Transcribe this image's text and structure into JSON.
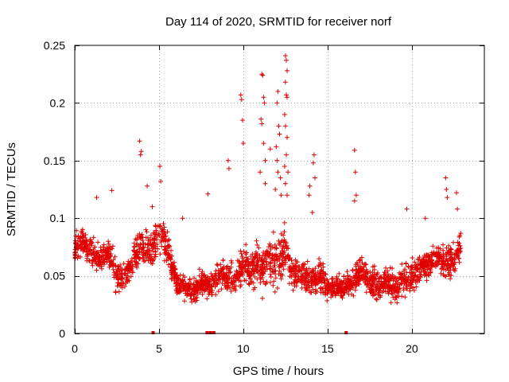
{
  "chart_data": {
    "type": "scatter",
    "title": "Day 114 of 2020, SRMTID for receiver norf",
    "xlabel": "GPS time / hours",
    "ylabel": "SRMTID / TECUs",
    "xlim": [
      0,
      24.3
    ],
    "ylim": [
      0,
      0.25
    ],
    "xticks": [
      0,
      5,
      10,
      15,
      20
    ],
    "xtick_labels": [
      "0",
      "5",
      "10",
      "15",
      "20"
    ],
    "yticks": [
      0,
      0.05,
      0.1,
      0.15,
      0.2,
      0.25
    ],
    "ytick_labels": [
      "0",
      "0.05",
      "0.1",
      "0.15",
      "0.2",
      "0.25"
    ],
    "grid": true,
    "marker": "+",
    "color": "#e00000",
    "series": [
      {
        "name": "SRMTID",
        "envelope": {
          "x": [
            0,
            0.5,
            1,
            1.5,
            2,
            2.5,
            3,
            3.5,
            4,
            4.5,
            5,
            5.5,
            6,
            6.5,
            7,
            7.5,
            8,
            8.5,
            9,
            9.5,
            10,
            10.5,
            11,
            11.5,
            12,
            12.5,
            13,
            13.5,
            14,
            14.5,
            15,
            15.5,
            16,
            16.5,
            17,
            17.5,
            18,
            18.5,
            19,
            19.5,
            20,
            20.5,
            21,
            21.5,
            22,
            22.5,
            22.9
          ],
          "mid": [
            0.075,
            0.08,
            0.07,
            0.065,
            0.07,
            0.05,
            0.05,
            0.065,
            0.075,
            0.07,
            0.085,
            0.075,
            0.045,
            0.04,
            0.035,
            0.045,
            0.04,
            0.05,
            0.05,
            0.045,
            0.06,
            0.055,
            0.06,
            0.06,
            0.065,
            0.07,
            0.05,
            0.05,
            0.045,
            0.05,
            0.04,
            0.04,
            0.04,
            0.045,
            0.055,
            0.045,
            0.04,
            0.045,
            0.04,
            0.045,
            0.05,
            0.055,
            0.06,
            0.065,
            0.06,
            0.065,
            0.075
          ],
          "spread": [
            0.02,
            0.02,
            0.02,
            0.02,
            0.02,
            0.02,
            0.02,
            0.02,
            0.025,
            0.025,
            0.025,
            0.02,
            0.015,
            0.015,
            0.015,
            0.015,
            0.015,
            0.02,
            0.02,
            0.02,
            0.025,
            0.025,
            0.03,
            0.035,
            0.04,
            0.035,
            0.02,
            0.02,
            0.02,
            0.02,
            0.015,
            0.015,
            0.015,
            0.02,
            0.02,
            0.02,
            0.02,
            0.02,
            0.02,
            0.02,
            0.02,
            0.02,
            0.02,
            0.02,
            0.02,
            0.02,
            0.02
          ],
          "n_points": 2400,
          "seed": 114
        },
        "peaks": [
          {
            "x": 3.85,
            "y": 0.167
          },
          {
            "x": 3.9,
            "y": 0.155
          },
          {
            "x": 3.95,
            "y": 0.158
          },
          {
            "x": 4.3,
            "y": 0.128
          },
          {
            "x": 5.05,
            "y": 0.145
          },
          {
            "x": 5.1,
            "y": 0.132
          },
          {
            "x": 2.2,
            "y": 0.124
          },
          {
            "x": 1.3,
            "y": 0.118
          },
          {
            "x": 7.9,
            "y": 0.121
          },
          {
            "x": 9.1,
            "y": 0.15
          },
          {
            "x": 9.15,
            "y": 0.143
          },
          {
            "x": 9.85,
            "y": 0.207
          },
          {
            "x": 9.9,
            "y": 0.203
          },
          {
            "x": 9.95,
            "y": 0.185
          },
          {
            "x": 10.0,
            "y": 0.165
          },
          {
            "x": 11.1,
            "y": 0.225
          },
          {
            "x": 11.15,
            "y": 0.224
          },
          {
            "x": 11.2,
            "y": 0.205
          },
          {
            "x": 11.25,
            "y": 0.2
          },
          {
            "x": 11.05,
            "y": 0.186
          },
          {
            "x": 11.1,
            "y": 0.182
          },
          {
            "x": 11.2,
            "y": 0.165
          },
          {
            "x": 11.3,
            "y": 0.15
          },
          {
            "x": 11.6,
            "y": 0.16
          },
          {
            "x": 11.0,
            "y": 0.14
          },
          {
            "x": 11.3,
            "y": 0.13
          },
          {
            "x": 12.0,
            "y": 0.2
          },
          {
            "x": 12.05,
            "y": 0.21
          },
          {
            "x": 12.1,
            "y": 0.18
          },
          {
            "x": 12.15,
            "y": 0.173
          },
          {
            "x": 11.95,
            "y": 0.162
          },
          {
            "x": 12.0,
            "y": 0.15
          },
          {
            "x": 12.05,
            "y": 0.14
          },
          {
            "x": 11.9,
            "y": 0.125
          },
          {
            "x": 12.2,
            "y": 0.135
          },
          {
            "x": 12.25,
            "y": 0.12
          },
          {
            "x": 12.5,
            "y": 0.241
          },
          {
            "x": 12.55,
            "y": 0.237
          },
          {
            "x": 12.6,
            "y": 0.228
          },
          {
            "x": 12.5,
            "y": 0.218
          },
          {
            "x": 12.55,
            "y": 0.207
          },
          {
            "x": 12.6,
            "y": 0.205
          },
          {
            "x": 12.45,
            "y": 0.19
          },
          {
            "x": 12.5,
            "y": 0.18
          },
          {
            "x": 12.6,
            "y": 0.17
          },
          {
            "x": 12.55,
            "y": 0.155
          },
          {
            "x": 12.45,
            "y": 0.145
          },
          {
            "x": 12.65,
            "y": 0.14
          },
          {
            "x": 12.5,
            "y": 0.13
          },
          {
            "x": 12.6,
            "y": 0.12
          },
          {
            "x": 14.2,
            "y": 0.155
          },
          {
            "x": 14.15,
            "y": 0.148
          },
          {
            "x": 14.25,
            "y": 0.135
          },
          {
            "x": 13.95,
            "y": 0.128
          },
          {
            "x": 13.9,
            "y": 0.12
          },
          {
            "x": 14.1,
            "y": 0.105
          },
          {
            "x": 16.6,
            "y": 0.159
          },
          {
            "x": 16.65,
            "y": 0.14
          },
          {
            "x": 16.7,
            "y": 0.12
          },
          {
            "x": 16.6,
            "y": 0.115
          },
          {
            "x": 22.0,
            "y": 0.135
          },
          {
            "x": 22.05,
            "y": 0.125
          },
          {
            "x": 22.1,
            "y": 0.118
          },
          {
            "x": 22.65,
            "y": 0.122
          },
          {
            "x": 22.7,
            "y": 0.108
          },
          {
            "x": 19.7,
            "y": 0.108
          },
          {
            "x": 20.8,
            "y": 0.1
          },
          {
            "x": 4.6,
            "y": 0.11
          },
          {
            "x": 6.4,
            "y": 0.1
          }
        ],
        "zero_markers": [
          4.65,
          7.85,
          8.05,
          8.25,
          16.1
        ]
      }
    ]
  }
}
